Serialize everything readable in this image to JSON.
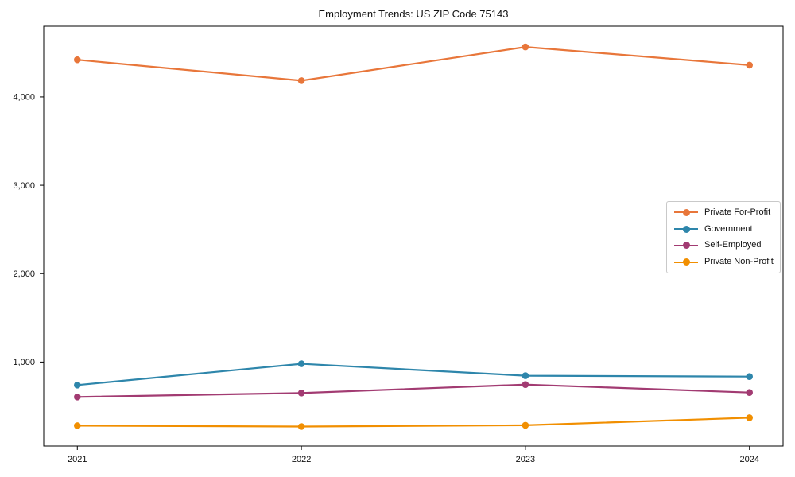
{
  "page": {
    "background": "#ffffff",
    "text_color": "#111111",
    "spine_color": "#000000"
  },
  "chart_data": {
    "type": "line",
    "title": "Employment Trends: US ZIP Code 75143",
    "xlabel": "",
    "ylabel": "",
    "grid": false,
    "legend_position": "center-right",
    "x": [
      2021,
      2022,
      2023,
      2024
    ],
    "xtick_labels": [
      "2021",
      "2022",
      "2023",
      "2024"
    ],
    "ytick_values": [
      1000,
      2000,
      3000,
      4000
    ],
    "ytick_labels": [
      "1,000",
      "2,000",
      "3,000",
      "4,000"
    ],
    "xlim": [
      2020.85,
      2024.15
    ],
    "ylim": [
      50,
      4800
    ],
    "series": [
      {
        "name": "Private For-Profit",
        "color": "#e8763a",
        "values": [
          4420,
          4185,
          4565,
          4360
        ]
      },
      {
        "name": "Government",
        "color": "#2e86ab",
        "values": [
          740,
          980,
          845,
          835
        ]
      },
      {
        "name": "Self-Employed",
        "color": "#a23b72",
        "values": [
          605,
          650,
          745,
          655
        ]
      },
      {
        "name": "Private Non-Profit",
        "color": "#f18f01",
        "values": [
          280,
          270,
          285,
          370
        ]
      }
    ]
  }
}
